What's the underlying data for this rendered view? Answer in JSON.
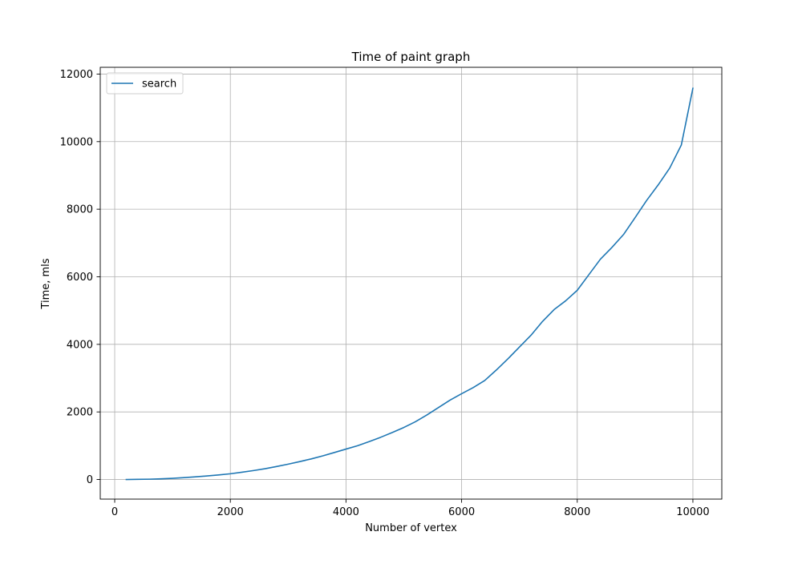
{
  "chart_data": {
    "type": "line",
    "title": "Time of paint graph",
    "xlabel": "Number of vertex",
    "ylabel": "Time, mls",
    "xlim": [
      -250,
      10500
    ],
    "ylim": [
      -580,
      12200
    ],
    "xticks": [
      0,
      2000,
      4000,
      6000,
      8000,
      10000
    ],
    "yticks": [
      0,
      2000,
      4000,
      6000,
      8000,
      10000,
      12000
    ],
    "grid": true,
    "legend_position": "top-left",
    "series": [
      {
        "name": "search",
        "color": "#1f77b4",
        "x": [
          200,
          400,
          600,
          800,
          1000,
          1200,
          1400,
          1600,
          1800,
          2000,
          2200,
          2400,
          2600,
          2800,
          3000,
          3200,
          3400,
          3600,
          3800,
          4000,
          4200,
          4400,
          4600,
          4800,
          5000,
          5200,
          5400,
          5600,
          5800,
          6000,
          6200,
          6400,
          6600,
          6800,
          7000,
          7200,
          7400,
          7600,
          7800,
          8000,
          8200,
          8400,
          8600,
          8800,
          9000,
          9200,
          9400,
          9600,
          9800,
          10000
        ],
        "values": [
          0,
          5,
          10,
          20,
          35,
          55,
          80,
          105,
          135,
          170,
          215,
          265,
          320,
          385,
          455,
          530,
          610,
          700,
          800,
          900,
          1000,
          1120,
          1250,
          1390,
          1540,
          1710,
          1910,
          2130,
          2350,
          2540,
          2720,
          2930,
          3240,
          3570,
          3920,
          4270,
          4680,
          5030,
          5290,
          5600,
          6060,
          6520,
          6870,
          7250,
          7750,
          8260,
          8720,
          9220,
          9900,
          11580
        ]
      }
    ]
  }
}
